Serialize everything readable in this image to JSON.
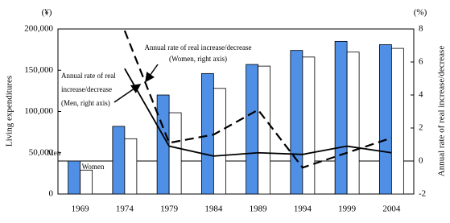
{
  "chart_data": {
    "type": "bar",
    "categories": [
      "1969",
      "1974",
      "1979",
      "1984",
      "1989",
      "1994",
      "1999",
      "2004"
    ],
    "series": [
      {
        "name": "Men",
        "color": "#4f8fe6",
        "values": [
          40000,
          82000,
          120000,
          146000,
          157000,
          174000,
          185000,
          181000
        ]
      },
      {
        "name": "Women",
        "color": "#ffffff",
        "values": [
          29000,
          67000,
          98500,
          128000,
          155000,
          166000,
          172000,
          176500
        ]
      },
      {
        "type": "line",
        "axis": "y2",
        "color": "#000000",
        "dashed": false,
        "values": [
          null,
          5.6,
          0.9,
          0.3,
          0.5,
          0.4,
          0.9,
          0.5
        ]
      },
      {
        "type": "line",
        "axis": "y2",
        "color": "#000000",
        "dashed": true,
        "values": [
          null,
          7.9,
          1.1,
          1.6,
          3.1,
          -0.4,
          0.5,
          1.4
        ]
      }
    ],
    "ylabel": "Living expenditures",
    "y2label": "Annual rate of real increase/decrease",
    "yunit": "(¥)",
    "y2unit": "(%)",
    "ylim": [
      0,
      200000
    ],
    "yticks": [
      0,
      {
        "value": 50000,
        "label": "50,000"
      },
      {
        "value": 100000,
        "label": "100,000"
      },
      {
        "value": 150000,
        "label": "150,000"
      },
      {
        "value": 200000,
        "label": "200,000"
      }
    ],
    "y2lim": [
      -2,
      8
    ],
    "y2ticks": [
      -2,
      0,
      2,
      4,
      6,
      8
    ],
    "annotations": [
      [
        "Annual rate of real",
        "increase/decrease",
        "(Men, right axis)"
      ],
      [
        "Annual rate of real increase/decrease",
        "(Women, right axis)"
      ]
    ]
  }
}
